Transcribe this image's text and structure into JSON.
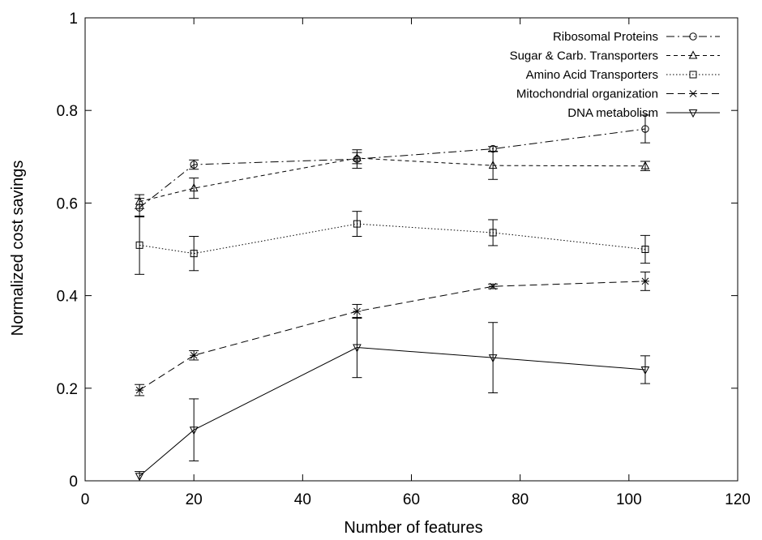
{
  "chart_data": {
    "type": "line",
    "title": "",
    "xlabel": "Number of features",
    "ylabel": "Normalized cost savings",
    "xlim": [
      0,
      120
    ],
    "ylim": [
      0,
      1
    ],
    "xticks": [
      "0",
      "20",
      "40",
      "60",
      "80",
      "100",
      "120"
    ],
    "yticks": [
      "0",
      "0.2",
      "0.4",
      "0.6",
      "0.8",
      "1"
    ],
    "x": [
      10,
      20,
      50,
      75,
      103
    ],
    "grid": false,
    "legend_position": "top-right",
    "series": [
      {
        "name": "Ribosomal Proteins",
        "marker": "circle",
        "dash": "10,4,2,4",
        "values": [
          0.59,
          0.683,
          0.695,
          0.717,
          0.76
        ],
        "errors": [
          0.02,
          0.01,
          0.02,
          0.005,
          0.03
        ]
      },
      {
        "name": "Sugar & Carb. Transporters",
        "marker": "triangle-up",
        "dash": "5,4",
        "values": [
          0.603,
          0.632,
          0.697,
          0.681,
          0.68
        ],
        "errors": [
          0.015,
          0.022,
          0.012,
          0.03,
          0.01
        ]
      },
      {
        "name": "Amino Acid Transporters",
        "marker": "square",
        "dash": "1.5,2.5",
        "values": [
          0.509,
          0.491,
          0.555,
          0.536,
          0.5
        ],
        "errors": [
          0.063,
          0.037,
          0.027,
          0.028,
          0.03
        ]
      },
      {
        "name": "Mitochondrial organization",
        "marker": "star",
        "dash": "9,5",
        "values": [
          0.196,
          0.271,
          0.366,
          0.42,
          0.431
        ],
        "errors": [
          0.012,
          0.01,
          0.015,
          0.005,
          0.02
        ]
      },
      {
        "name": "DNA metabolism",
        "marker": "triangle-down",
        "dash": "",
        "values": [
          0.01,
          0.11,
          0.288,
          0.266,
          0.24
        ],
        "errors": [
          0.01,
          0.067,
          0.065,
          0.076,
          0.03
        ]
      }
    ]
  }
}
